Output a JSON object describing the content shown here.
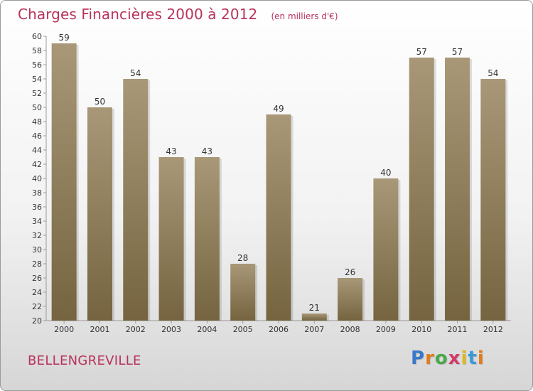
{
  "chart_data": {
    "type": "bar",
    "title": "Charges Financières 2000 à 2012",
    "unit_note": "(en milliers d'€)",
    "categories": [
      "2000",
      "2001",
      "2002",
      "2003",
      "2004",
      "2005",
      "2006",
      "2007",
      "2008",
      "2009",
      "2010",
      "2011",
      "2012"
    ],
    "values": [
      59,
      50,
      54,
      43,
      43,
      28,
      49,
      21,
      26,
      40,
      57,
      57,
      54
    ],
    "ylim": [
      20,
      60
    ],
    "ytick_step": 2,
    "xlabel": "",
    "ylabel": "",
    "grid": false,
    "bar_color_top": "#a89878",
    "bar_color_bottom": "#75643f",
    "label_color": "#333333"
  },
  "footer": {
    "commune": "BELLENGREVILLE"
  },
  "logo": {
    "letters": [
      "P",
      "r",
      "o",
      "x",
      "i",
      "t",
      "i"
    ],
    "colors": [
      "#3a78c8",
      "#e07b1f",
      "#4aa84a",
      "#d23a6a",
      "#e0b81f",
      "#3a9ad8",
      "#e07b1f"
    ]
  }
}
